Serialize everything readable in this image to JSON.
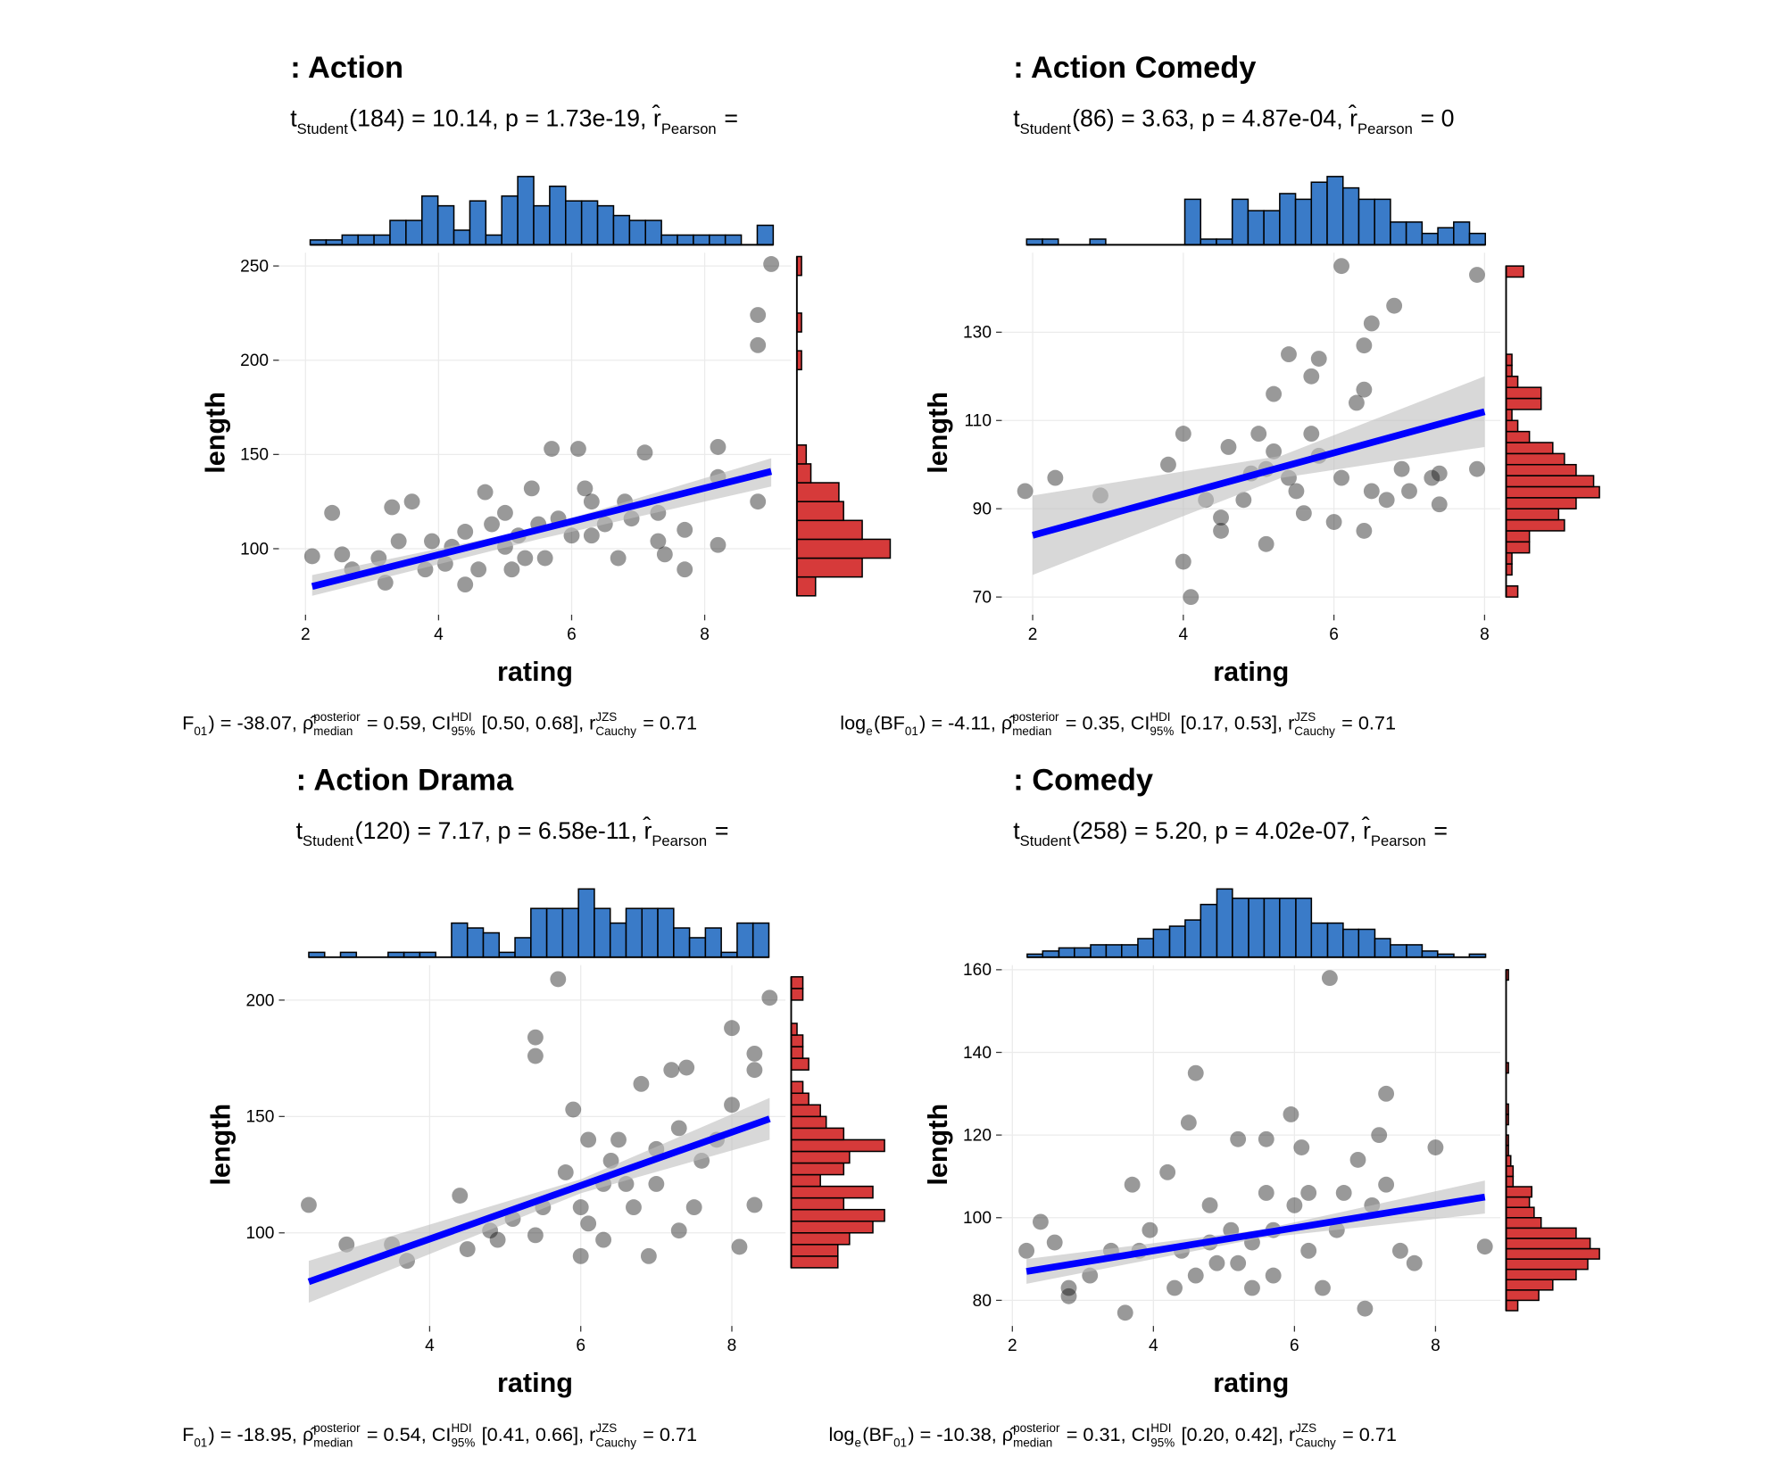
{
  "chart_data": [
    {
      "type": "scatter",
      "title": ": Action",
      "subtitle": [
        "t",
        {
          "sub": "Student"
        },
        "(184) = 10.14, p = 1.73e-19, r̂",
        {
          "sub": "Pearson"
        },
        " ="
      ],
      "caption": [
        "F",
        {
          "sub": "01"
        },
        ") = -38.07, ρ̂",
        {
          "sup": "posterior",
          "sub": "median"
        },
        " = 0.59, CI",
        {
          "sup": "HDI",
          "sub": "95%"
        },
        " [0.50, 0.68], r",
        {
          "sup": "JZS",
          "sub": "Cauchy"
        },
        " = 0.71"
      ],
      "xlabel": "rating",
      "ylabel": "length",
      "xlim": [
        1.6,
        9.3
      ],
      "ylim": [
        65,
        257
      ],
      "xticks": [
        2,
        4,
        6,
        8
      ],
      "yticks": [
        100,
        150,
        200,
        250
      ],
      "point_color": "#000000",
      "fit_color": "#0000ff",
      "band_color": "#bebebe",
      "x": [
        9.0,
        8.8,
        8.8,
        2.4,
        2.1,
        2.55,
        3.3,
        3.6,
        3.2,
        3.4,
        3.9,
        4.1,
        4.4,
        4.4,
        4.7,
        5.0,
        5.2,
        5.4,
        5.7,
        6.1,
        5.8,
        6.2,
        6.3,
        6.7,
        6.8,
        7.1,
        7.3,
        7.4,
        7.7,
        8.2,
        8.2,
        8.2,
        8.8,
        3.1,
        3.8,
        4.6,
        5.1,
        5.6,
        6.0,
        5.5,
        4.8,
        6.3,
        6.9,
        7.7,
        7.3,
        2.7,
        6.5,
        5.3,
        4.2,
        5.0
      ],
      "y": [
        251,
        224,
        208,
        119,
        96,
        97,
        122,
        125,
        82,
        104,
        104,
        92,
        81,
        109,
        130,
        101,
        107,
        132,
        153,
        153,
        116,
        132,
        107,
        95,
        125,
        151,
        119,
        97,
        110,
        154,
        138,
        102,
        125,
        95,
        89,
        89,
        89,
        95,
        107,
        113,
        113,
        125,
        116,
        89,
        104,
        89,
        113,
        95,
        101,
        119
      ],
      "fit": {
        "x": [
          2.1,
          9.0
        ],
        "y": [
          80,
          141
        ]
      },
      "band": {
        "x": [
          2.1,
          5.5,
          9.0
        ],
        "lower": [
          75,
          105,
          133
        ],
        "upper": [
          86,
          111,
          148
        ]
      },
      "top_hist": {
        "color": "#3a7bc8",
        "bins": [
          2.07,
          2.31,
          2.55,
          2.79,
          3.03,
          3.27,
          3.51,
          3.75,
          3.99,
          4.23,
          4.47,
          4.71,
          4.95,
          5.19,
          5.43,
          5.67,
          5.91,
          6.15,
          6.39,
          6.63,
          6.87,
          7.11,
          7.35,
          7.59,
          7.83,
          8.07,
          8.31,
          8.55,
          8.79,
          9.03
        ],
        "counts": [
          1,
          1,
          2,
          2,
          2,
          5,
          5,
          10,
          8,
          3,
          9,
          2,
          10,
          14,
          8,
          12,
          9,
          9,
          8,
          6,
          5,
          5,
          2,
          2,
          2,
          2,
          2,
          0,
          4
        ]
      },
      "right_hist": {
        "color": "#d63a3a",
        "bins": [
          75,
          85,
          95,
          105,
          115,
          125,
          135,
          145,
          155,
          165,
          175,
          185,
          195,
          205,
          215,
          225,
          235,
          245,
          255
        ],
        "counts": [
          4,
          14,
          20,
          14,
          10,
          9,
          3,
          2,
          0,
          0,
          0,
          0,
          1,
          0,
          1,
          0,
          0,
          1
        ]
      }
    },
    {
      "type": "scatter",
      "title": ": Action Comedy",
      "subtitle": [
        "t",
        {
          "sub": "Student"
        },
        "(86) = 3.63, p = 4.87e-04, r̂",
        {
          "sub": "Pearson"
        },
        " = 0"
      ],
      "caption": [
        "log",
        {
          "sub": "e"
        },
        "(BF",
        {
          "sub": "01"
        },
        ") = -4.11, ρ̂",
        {
          "sup": "posterior",
          "sub": "median"
        },
        " = 0.35, CI",
        {
          "sup": "HDI",
          "sub": "95%"
        },
        " [0.17, 0.53], r",
        {
          "sup": "JZS",
          "sub": "Cauchy"
        },
        " = 0.71"
      ],
      "xlabel": "rating",
      "ylabel": "length",
      "xlim": [
        1.59,
        8.21
      ],
      "ylim": [
        66,
        148
      ],
      "xticks": [
        2,
        4,
        6,
        8
      ],
      "yticks": [
        70,
        90,
        110,
        130
      ],
      "point_color": "#000000",
      "fit_color": "#0000ff",
      "band_color": "#bebebe",
      "x": [
        1.9,
        2.3,
        2.9,
        4.0,
        3.8,
        4.0,
        4.1,
        4.6,
        5.0,
        5.1,
        5.2,
        5.4,
        5.7,
        5.8,
        6.1,
        6.4,
        6.5,
        6.8,
        6.4,
        6.3,
        7.9,
        7.9,
        7.4,
        7.4,
        7.0,
        6.7,
        6.4,
        6.0,
        5.6,
        5.1,
        4.5,
        4.5,
        4.8,
        5.4,
        5.8,
        6.1,
        6.5,
        6.9,
        7.3,
        5.7,
        5.2,
        4.9,
        4.3,
        5.5
      ],
      "y": [
        94,
        97,
        93,
        107,
        100,
        78,
        70,
        104,
        107,
        99,
        116,
        125,
        120,
        124,
        145,
        127,
        132,
        136,
        117,
        114,
        143,
        99,
        91,
        98,
        94,
        92,
        85,
        87,
        89,
        82,
        85,
        88,
        92,
        97,
        102,
        97,
        94,
        99,
        97,
        107,
        103,
        98,
        92,
        94
      ],
      "fit": {
        "x": [
          2.0,
          8.0
        ],
        "y": [
          84,
          112
        ]
      },
      "band": {
        "x": [
          2.0,
          5.3,
          8.0
        ],
        "lower": [
          75,
          97,
          104
        ],
        "upper": [
          93,
          102,
          120
        ]
      },
      "top_hist": {
        "color": "#3a7bc8",
        "bins": [
          1.92,
          2.13,
          2.34,
          2.55,
          2.76,
          2.97,
          3.18,
          3.39,
          3.6,
          3.81,
          4.02,
          4.23,
          4.44,
          4.65,
          4.86,
          5.07,
          5.28,
          5.49,
          5.7,
          5.91,
          6.12,
          6.33,
          6.54,
          6.75,
          6.96,
          7.17,
          7.38,
          7.59,
          7.8,
          8.01
        ],
        "counts": [
          1,
          1,
          0,
          0,
          1,
          0,
          0,
          0,
          0,
          0,
          8,
          1,
          1,
          8,
          6,
          6,
          9,
          8,
          11,
          12,
          10,
          8,
          8,
          4,
          4,
          2,
          3,
          4,
          2
        ]
      },
      "right_hist": {
        "color": "#d63a3a",
        "bins": [
          70,
          72.5,
          75,
          77.5,
          80,
          82.5,
          85,
          87.5,
          90,
          92.5,
          95,
          97.5,
          100,
          102.5,
          105,
          107.5,
          110,
          112.5,
          115,
          117.5,
          120,
          122.5,
          125,
          127.5,
          130,
          132.5,
          135,
          137.5,
          140,
          142.5,
          145
        ],
        "counts": [
          2,
          0,
          1,
          1,
          4,
          4,
          10,
          9,
          12,
          16,
          15,
          12,
          10,
          8,
          4,
          2,
          1,
          6,
          6,
          2,
          1,
          1,
          0,
          0,
          0,
          0,
          0,
          0,
          0,
          3
        ]
      }
    },
    {
      "type": "scatter",
      "title": ": Action Drama",
      "subtitle": [
        "t",
        {
          "sub": "Student"
        },
        "(120) = 7.17, p = 6.58e-11, r̂",
        {
          "sub": "Pearson"
        },
        " ="
      ],
      "caption": [
        "F",
        {
          "sub": "01"
        },
        ") = -18.95, ρ̂",
        {
          "sup": "posterior",
          "sub": "median"
        },
        " = 0.54, CI",
        {
          "sup": "HDI",
          "sub": "95%"
        },
        " [0.41, 0.66], r",
        {
          "sup": "JZS",
          "sub": "Cauchy"
        },
        " = 0.71"
      ],
      "xlabel": "rating",
      "ylabel": "length",
      "xlim": [
        2.08,
        8.71
      ],
      "ylim": [
        60,
        215
      ],
      "xticks": [
        4,
        6,
        8
      ],
      "yticks": [
        100,
        150,
        200
      ],
      "point_color": "#000000",
      "fit_color": "#0000ff",
      "band_color": "#bebebe",
      "x": [
        2.4,
        2.9,
        3.5,
        3.7,
        4.4,
        4.5,
        4.8,
        5.1,
        5.4,
        5.4,
        5.7,
        5.9,
        5.8,
        6.0,
        6.1,
        6.3,
        6.4,
        6.6,
        6.8,
        7.0,
        7.2,
        7.4,
        7.3,
        7.5,
        7.6,
        8.0,
        8.0,
        8.1,
        8.3,
        8.3,
        8.3,
        8.5,
        6.9,
        6.0,
        5.4,
        4.9,
        5.5,
        6.7,
        6.3,
        7.0,
        7.3,
        7.8,
        6.1,
        6.5
      ],
      "y": [
        112,
        95,
        95,
        88,
        116,
        93,
        101,
        106,
        184,
        176,
        209,
        153,
        126,
        111,
        140,
        97,
        131,
        121,
        164,
        136,
        170,
        171,
        145,
        111,
        131,
        188,
        155,
        94,
        177,
        170,
        112,
        201,
        90,
        90,
        99,
        97,
        111,
        111,
        121,
        121,
        101,
        140,
        104,
        140
      ],
      "fit": {
        "x": [
          2.4,
          8.5
        ],
        "y": [
          79,
          149
        ]
      },
      "band": {
        "x": [
          2.4,
          6.0,
          8.5
        ],
        "lower": [
          70,
          117,
          140
        ],
        "upper": [
          88,
          123,
          158
        ]
      },
      "top_hist": {
        "color": "#3a7bc8",
        "bins": [
          2.4,
          2.61,
          2.82,
          3.03,
          3.24,
          3.45,
          3.66,
          3.87,
          4.08,
          4.29,
          4.5,
          4.71,
          4.92,
          5.13,
          5.34,
          5.55,
          5.76,
          5.97,
          6.18,
          6.39,
          6.6,
          6.81,
          7.02,
          7.23,
          7.44,
          7.65,
          7.86,
          8.07,
          8.28,
          8.49
        ],
        "counts": [
          1,
          0,
          1,
          0,
          0,
          1,
          1,
          1,
          0,
          7,
          6,
          5,
          1,
          4,
          10,
          10,
          10,
          14,
          10,
          7,
          10,
          10,
          10,
          6,
          4,
          6,
          1,
          7,
          7
        ]
      },
      "right_hist": {
        "color": "#d63a3a",
        "bins": [
          85,
          90,
          95,
          100,
          105,
          110,
          115,
          120,
          125,
          130,
          135,
          140,
          145,
          150,
          155,
          160,
          165,
          170,
          175,
          180,
          185,
          190,
          195,
          200,
          205,
          210
        ],
        "counts": [
          8,
          8,
          10,
          14,
          16,
          9,
          14,
          5,
          9,
          10,
          16,
          9,
          6,
          5,
          3,
          2,
          0,
          3,
          2,
          2,
          1,
          0,
          0,
          2,
          2
        ]
      }
    },
    {
      "type": "scatter",
      "title": ": Comedy",
      "subtitle": [
        "t",
        {
          "sub": "Student"
        },
        "(258) = 5.20, p = 4.02e-07, r̂",
        {
          "sub": "Pearson"
        },
        " ="
      ],
      "caption": [
        "log",
        {
          "sub": "e"
        },
        "(BF",
        {
          "sub": "01"
        },
        ") = -10.38, ρ̂",
        {
          "sup": "posterior",
          "sub": "median"
        },
        " = 0.31, CI",
        {
          "sup": "HDI",
          "sub": "95%"
        },
        " [0.20, 0.42], r",
        {
          "sup": "JZS",
          "sub": "Cauchy"
        },
        " = 0.71"
      ],
      "xlabel": "rating",
      "ylabel": "length",
      "xlim": [
        1.85,
        8.92
      ],
      "ylim": [
        73.8,
        161.1
      ],
      "xticks": [
        2,
        4,
        6,
        8
      ],
      "yticks": [
        80,
        100,
        120,
        140,
        160
      ],
      "point_color": "#000000",
      "fit_color": "#0000ff",
      "band_color": "#bebebe",
      "x": [
        2.2,
        2.4,
        2.6,
        2.8,
        2.8,
        3.1,
        3.6,
        3.7,
        3.95,
        4.2,
        4.3,
        4.4,
        4.6,
        4.5,
        4.8,
        4.9,
        5.2,
        5.4,
        5.6,
        5.6,
        5.7,
        5.95,
        6.1,
        6.2,
        6.5,
        6.2,
        6.6,
        6.9,
        7.0,
        7.1,
        7.2,
        7.3,
        7.5,
        7.7,
        8.0,
        8.7,
        5.1,
        5.2,
        5.7,
        6.0,
        4.8,
        3.8,
        3.4,
        6.4,
        7.3,
        4.6,
        5.4,
        6.7
      ],
      "y": [
        92,
        99,
        94,
        83,
        81,
        86,
        77,
        108,
        97,
        111,
        83,
        92,
        135,
        123,
        103,
        89,
        119,
        94,
        106,
        119,
        86,
        125,
        117,
        92,
        158,
        106,
        97,
        114,
        78,
        103,
        120,
        130,
        92,
        89,
        117,
        93,
        97,
        89,
        97,
        103,
        94,
        92,
        92,
        83,
        108,
        86,
        83,
        106
      ],
      "fit": {
        "x": [
          2.2,
          8.7
        ],
        "y": [
          87,
          105
        ]
      },
      "band": {
        "x": [
          2.2,
          5.5,
          8.7
        ],
        "lower": [
          84,
          95,
          101
        ],
        "upper": [
          90,
          97,
          109
        ]
      },
      "top_hist": {
        "color": "#3a7bc8",
        "bins": [
          2.21,
          2.43,
          2.66,
          2.88,
          3.11,
          3.33,
          3.55,
          3.78,
          4.0,
          4.23,
          4.45,
          4.67,
          4.9,
          5.12,
          5.35,
          5.57,
          5.79,
          6.02,
          6.24,
          6.47,
          6.69,
          6.91,
          7.14,
          7.36,
          7.59,
          7.81,
          8.03,
          8.26,
          8.48,
          8.71
        ],
        "counts": [
          1,
          2,
          3,
          3,
          4,
          4,
          4,
          6,
          9,
          10,
          12,
          17,
          22,
          19,
          19,
          19,
          19,
          19,
          11,
          11,
          9,
          9,
          6,
          4,
          4,
          2,
          1,
          0,
          1
        ]
      },
      "right_hist": {
        "color": "#d63a3a",
        "bins": [
          77.5,
          80,
          82.5,
          85,
          87.5,
          90,
          92.5,
          95,
          97.5,
          100,
          102.5,
          105,
          107.5,
          110,
          112.5,
          115,
          117.5,
          120,
          122.5,
          125,
          127.5,
          130,
          132.5,
          135,
          137.5,
          140,
          142.5,
          145,
          147.5,
          150,
          152.5,
          155,
          157.5,
          160
        ],
        "counts": [
          5,
          14,
          20,
          30,
          35,
          40,
          36,
          30,
          15,
          12,
          10,
          11,
          3,
          3,
          2,
          1,
          1,
          0,
          1,
          1,
          0,
          0,
          0,
          1,
          0,
          0,
          0,
          0,
          0,
          0,
          0,
          0,
          1
        ]
      }
    }
  ]
}
